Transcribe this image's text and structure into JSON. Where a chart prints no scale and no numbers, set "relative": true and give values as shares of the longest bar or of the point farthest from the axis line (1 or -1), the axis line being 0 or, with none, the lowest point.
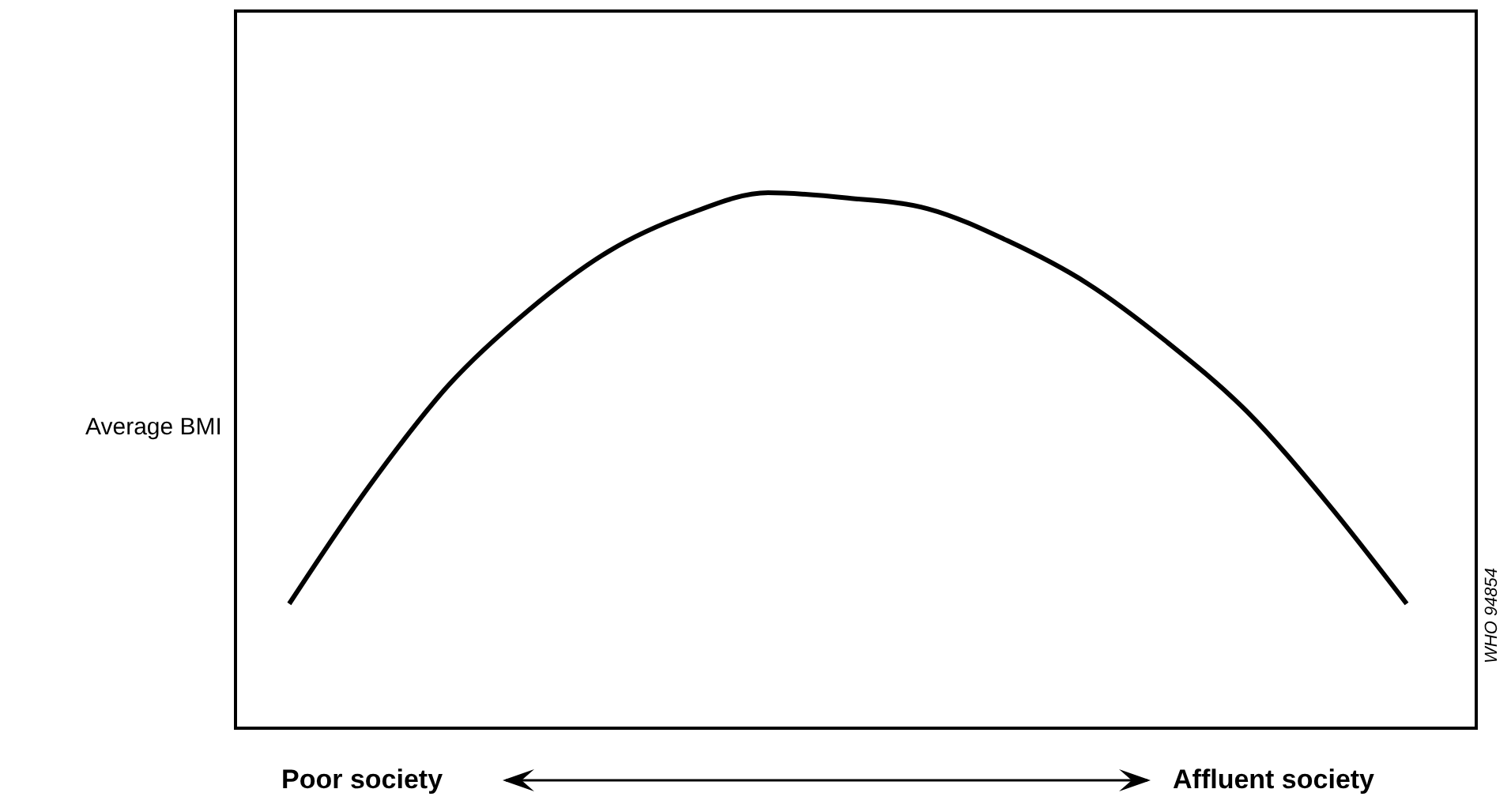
{
  "chart_data": {
    "type": "line",
    "relative": true,
    "ylabel": "Average BMI",
    "categories": [
      null,
      null,
      null,
      null,
      null,
      null,
      null,
      null,
      null,
      null,
      null,
      null,
      null,
      null,
      null
    ],
    "series": [
      {
        "color": "#000000",
        "values": [
          0.23,
          0.45,
          0.64,
          0.78,
          0.89,
          0.96,
          1,
          0.99,
          0.97,
          0.91,
          0.83,
          0.72,
          0.59,
          0.42,
          0.23
        ]
      }
    ],
    "annotations": [
      "Poor society",
      "Affluent society",
      "WHO 94854"
    ],
    "grid": false,
    "legend": false,
    "marker": "none",
    "line_style": "solid"
  }
}
